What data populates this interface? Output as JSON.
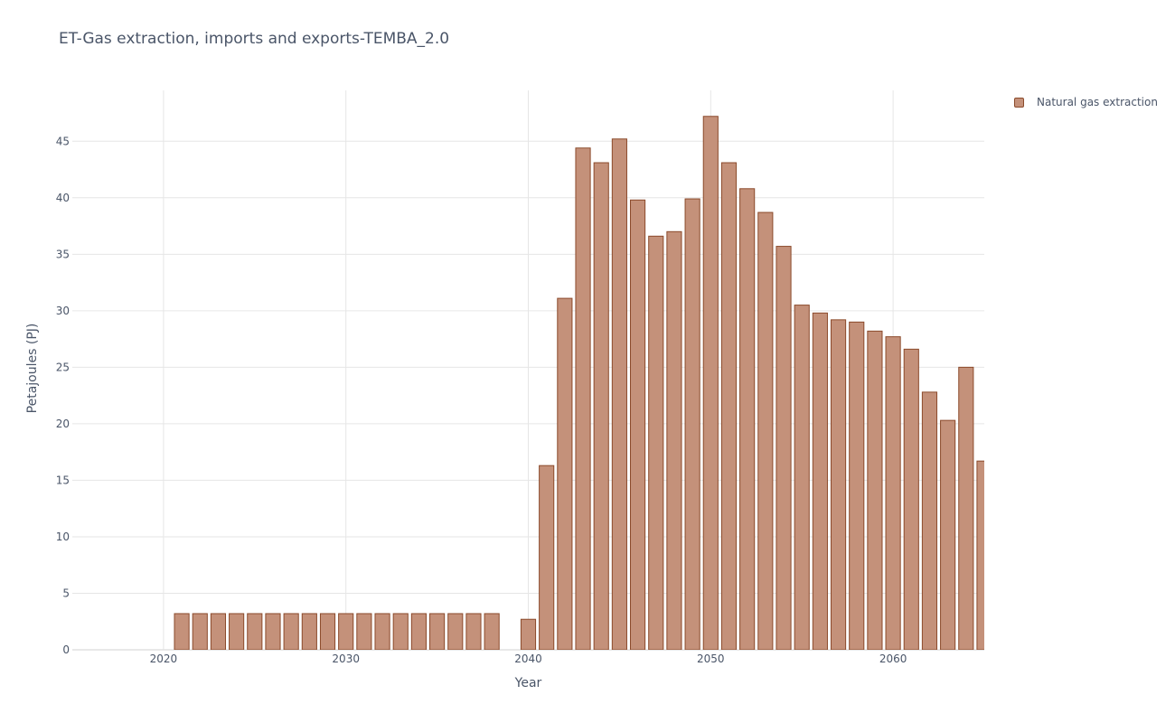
{
  "chart_data": {
    "type": "bar",
    "title": "ET-Gas extraction, imports and exports-TEMBA_2.0",
    "xlabel": "Year",
    "ylabel": "Petajoules (PJ)",
    "xlim": [
      2015,
      2065
    ],
    "ylim": [
      0,
      49.5
    ],
    "x_ticks": [
      2020,
      2030,
      2040,
      2050,
      2060
    ],
    "y_ticks": [
      0,
      5,
      10,
      15,
      20,
      25,
      30,
      35,
      40,
      45
    ],
    "grid": true,
    "legend_position": "top-right",
    "series": [
      {
        "name": "Natural gas extraction",
        "color": "#c4917a",
        "edge_color": "#8b4a2b",
        "x": [
          2021,
          2022,
          2023,
          2024,
          2025,
          2026,
          2027,
          2028,
          2029,
          2030,
          2031,
          2032,
          2033,
          2034,
          2035,
          2036,
          2037,
          2038,
          2040,
          2041,
          2042,
          2043,
          2044,
          2045,
          2046,
          2047,
          2048,
          2049,
          2050,
          2051,
          2052,
          2053,
          2054,
          2055,
          2056,
          2057,
          2058,
          2059,
          2060,
          2061,
          2062,
          2063,
          2064,
          2065
        ],
        "values": [
          3.2,
          3.2,
          3.2,
          3.2,
          3.2,
          3.2,
          3.2,
          3.2,
          3.2,
          3.2,
          3.2,
          3.2,
          3.2,
          3.2,
          3.2,
          3.2,
          3.2,
          3.2,
          2.7,
          16.3,
          31.1,
          44.4,
          43.1,
          45.2,
          39.8,
          36.6,
          37.0,
          39.9,
          47.2,
          43.1,
          40.8,
          38.7,
          35.7,
          30.5,
          29.8,
          29.2,
          29.0,
          28.2,
          27.7,
          26.6,
          22.8,
          20.3,
          25.0,
          16.7
        ]
      }
    ]
  }
}
